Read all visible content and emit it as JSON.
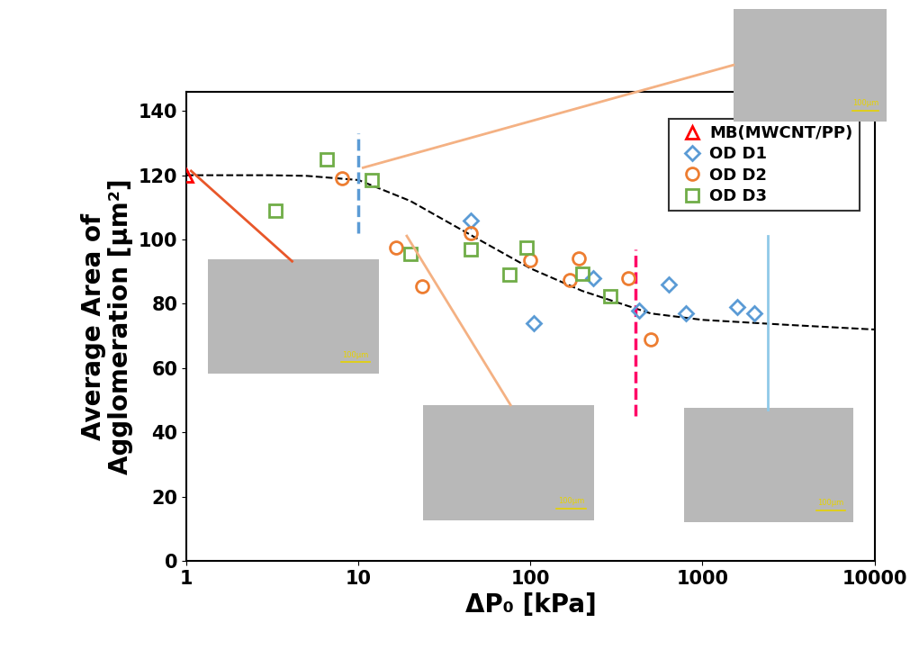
{
  "chart_data": {
    "type": "scatter",
    "x_label": "ΔP₀ [kPa]",
    "y_label": "Average Area of\nAgglomeration [μm²]",
    "log": "x",
    "xlim": [
      1,
      10000
    ],
    "xticks": [
      1,
      10,
      100,
      1000,
      10000
    ],
    "ylim": [
      0,
      146
    ],
    "yticks": [
      0,
      20,
      40,
      60,
      80,
      100,
      120,
      140
    ],
    "grid": false,
    "legend": "upper right",
    "series": [
      {
        "name": "MB(MWCNT/PP)",
        "color": "#ff0000",
        "marker": "triangle",
        "x": [
          1
        ],
        "values": [
          120
        ]
      },
      {
        "name": "OD D1",
        "color": "#5b9bd5",
        "marker": "diamond",
        "x": [
          45,
          105,
          230,
          430,
          640,
          800,
          1600,
          2000
        ],
        "values": [
          106,
          74,
          88,
          78,
          86,
          77,
          79,
          77
        ]
      },
      {
        "name": "OD D2",
        "color": "#ed7d31",
        "marker": "circle",
        "x": [
          8,
          16.5,
          23.5,
          45,
          100,
          170,
          190,
          370,
          500
        ],
        "values": [
          119,
          97.5,
          85.5,
          102,
          93.5,
          87.5,
          94,
          88,
          69
        ]
      },
      {
        "name": "OD D3",
        "color": "#70ad47",
        "marker": "square",
        "x": [
          3.3,
          6.5,
          12,
          20,
          45,
          95,
          75,
          200,
          290
        ],
        "values": [
          109,
          125,
          118.5,
          95.5,
          97,
          97.5,
          89,
          89.5,
          82.5
        ]
      }
    ],
    "trend": {
      "color": "#000000",
      "line_style": "dashed",
      "x": [
        1,
        3,
        5,
        10,
        20,
        50,
        100,
        200,
        500,
        1000,
        3000,
        10000
      ],
      "values": [
        120,
        120,
        119.8,
        118.5,
        112,
        100,
        91,
        84,
        77,
        75,
        73.5,
        72
      ]
    },
    "reference_lines": [
      {
        "x": 10,
        "ymin": 102,
        "ymax": 133,
        "color": "#5b9bd5",
        "line_style": "dashed"
      },
      {
        "x": 407,
        "ymin": 45,
        "ymax": 97,
        "color": "#ff0066",
        "line_style": "dashed"
      }
    ],
    "image_scale_bar": "100μm"
  }
}
